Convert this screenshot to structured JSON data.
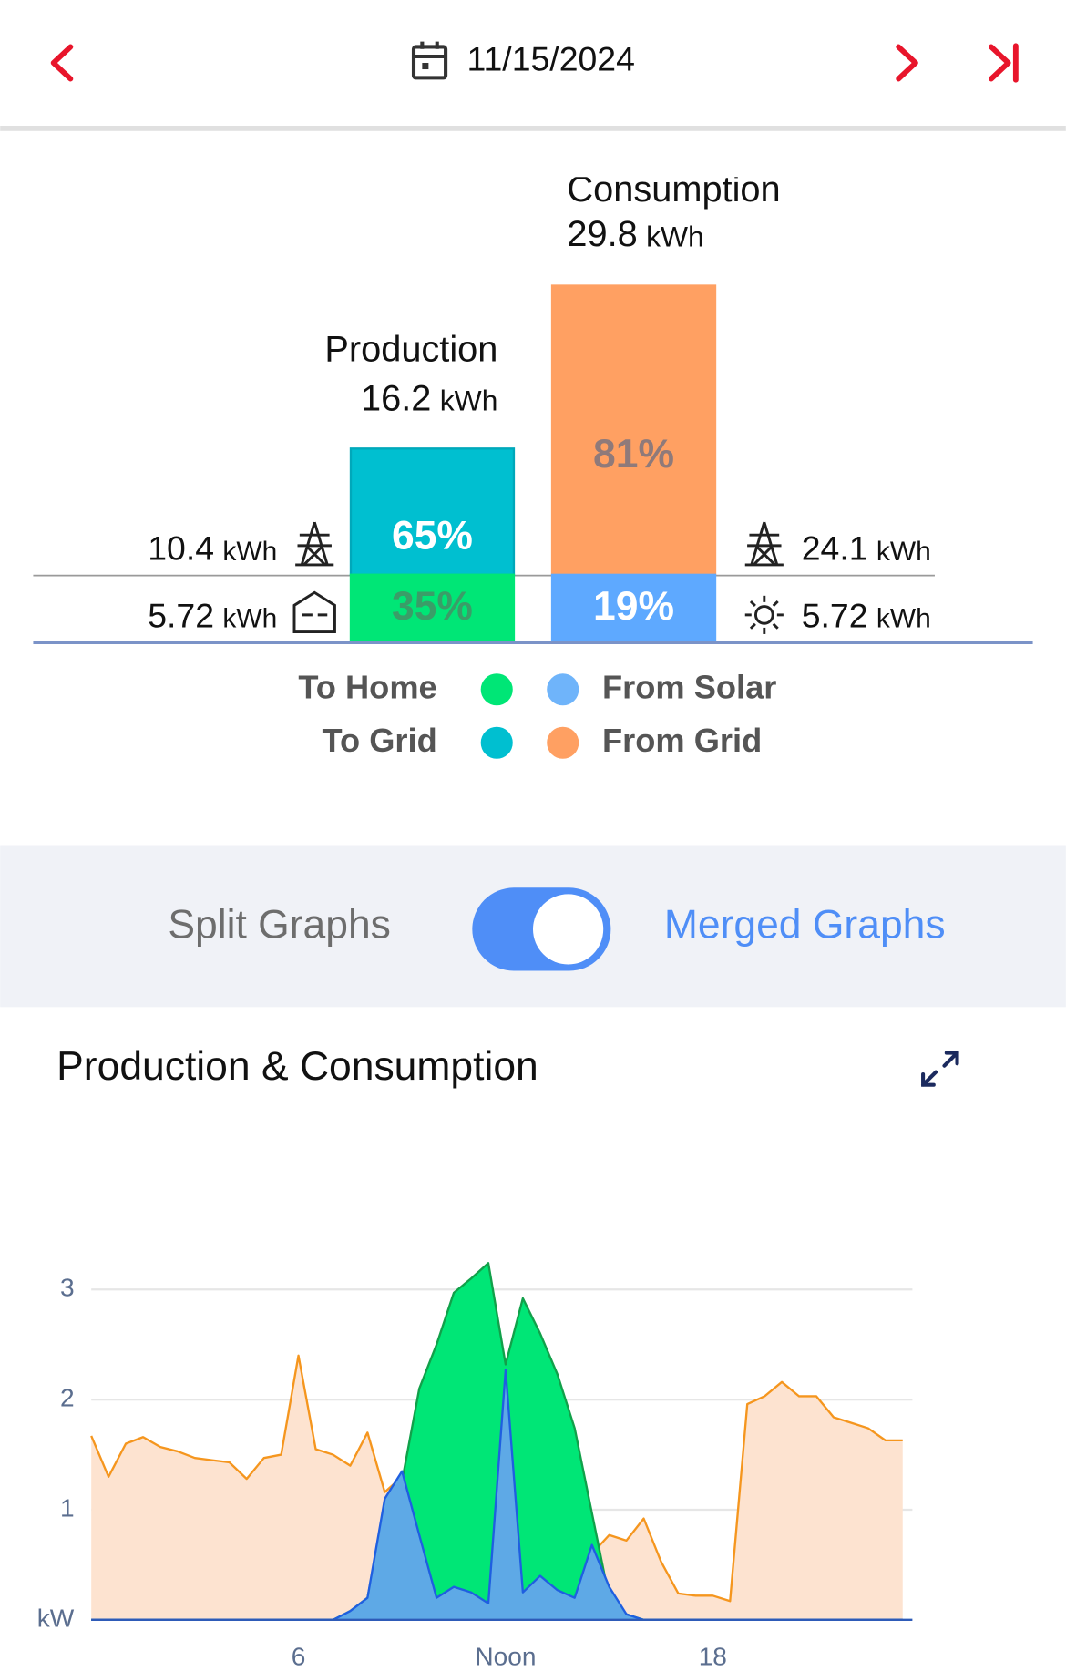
{
  "header": {
    "date": "11/15/2024"
  },
  "summary": {
    "unit": "kWh",
    "production": {
      "title": "Production",
      "total": 16.2,
      "segments": [
        {
          "value": 65,
          "label": "65%",
          "kwh": 10.4,
          "color": "#00bfd0"
        },
        {
          "value": 35,
          "label": "35%",
          "kwh": 5.72,
          "color": "#00e676"
        }
      ]
    },
    "consumption": {
      "title": "Consumption",
      "total": 29.8,
      "segments": [
        {
          "value": 81,
          "label": "81%",
          "kwh": 24.1,
          "color": "#ffa062"
        },
        {
          "value": 19,
          "label": "19%",
          "kwh": 5.72,
          "color": "#5ea9ff"
        }
      ]
    }
  },
  "legend": [
    {
      "label": "To Home",
      "color": "#00e676"
    },
    {
      "label": "To Grid",
      "color": "#00bfd0"
    },
    {
      "label": "From Solar",
      "color": "#6fb4fa"
    },
    {
      "label": "From Grid",
      "color": "#ffa062"
    }
  ],
  "toggle": {
    "left": "Split Graphs",
    "right": "Merged Graphs",
    "on": true
  },
  "chart_data": {
    "type": "area",
    "title": "Production & Consumption",
    "x": [
      0,
      0.5,
      1,
      1.5,
      2,
      2.5,
      3,
      3.5,
      4,
      4.5,
      5,
      5.5,
      6,
      6.5,
      7,
      7.5,
      8,
      8.5,
      9,
      9.5,
      10,
      10.5,
      11,
      11.5,
      12,
      12.5,
      13,
      13.5,
      14,
      14.5,
      15,
      15.5,
      16,
      16.5,
      17,
      17.5,
      18,
      18.5,
      19,
      19.5,
      20,
      20.5,
      21,
      21.5,
      22,
      22.5,
      23,
      23.5
    ],
    "xlim": [
      0,
      24
    ],
    "xticks": [
      6,
      {
        "value": 12,
        "label": "Noon"
      },
      18
    ],
    "ylim": [
      0,
      3.3
    ],
    "yticks": [
      {
        "value": 0,
        "label": "kW"
      },
      1,
      2,
      3
    ],
    "grid": true,
    "series": [
      {
        "color": "#f5961e",
        "fill": "#fde3d0",
        "values": [
          1.67,
          1.3,
          1.6,
          1.66,
          1.57,
          1.53,
          1.47,
          1.45,
          1.43,
          1.28,
          1.47,
          1.5,
          2.4,
          1.55,
          1.5,
          1.4,
          1.7,
          1.16,
          1.3,
          1.2,
          1.2,
          1.1,
          1.1,
          1.2,
          2.35,
          1.2,
          1.0,
          0.9,
          0.8,
          0.6,
          0.77,
          0.72,
          0.92,
          0.53,
          0.24,
          0.22,
          0.22,
          0.17,
          1.96,
          2.03,
          2.16,
          2.03,
          2.03,
          1.84,
          1.79,
          1.74,
          1.63,
          1.63
        ]
      },
      {
        "color": "#12a04a",
        "fill": "#00e676",
        "values": [
          0,
          0,
          0,
          0,
          0,
          0,
          0,
          0,
          0,
          0,
          0,
          0,
          0,
          0,
          0,
          0.08,
          0.2,
          1.0,
          1.26,
          2.1,
          2.5,
          2.97,
          3.1,
          3.24,
          2.32,
          2.92,
          2.6,
          2.23,
          1.74,
          0.97,
          0.2,
          0.05,
          0,
          0,
          0,
          0,
          0,
          0,
          0,
          0,
          0,
          0,
          0,
          0,
          0,
          0,
          0,
          0
        ]
      },
      {
        "color": "#1f5fe0",
        "fill": "#5ea9e6",
        "values": [
          0,
          0,
          0,
          0,
          0,
          0,
          0,
          0,
          0,
          0,
          0,
          0,
          0,
          0,
          0,
          0.08,
          0.2,
          1.1,
          1.35,
          0.77,
          0.2,
          0.3,
          0.25,
          0.15,
          2.27,
          0.25,
          0.4,
          0.27,
          0.2,
          0.68,
          0.3,
          0.05,
          0,
          0,
          0,
          0,
          0,
          0,
          0,
          0,
          0,
          0,
          0,
          0,
          0,
          0,
          0,
          0
        ]
      }
    ]
  }
}
